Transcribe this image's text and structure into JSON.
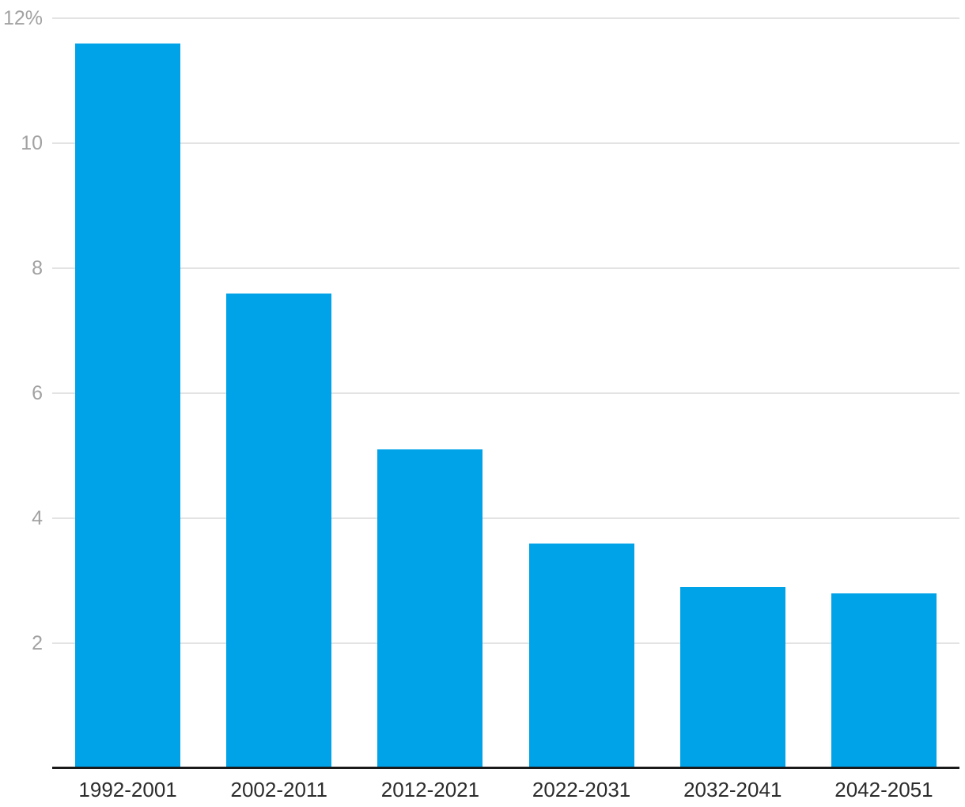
{
  "chart_data": {
    "type": "bar",
    "title": "",
    "xlabel": "",
    "ylabel": "",
    "categories": [
      "1992-2001",
      "2002-2011",
      "2012-2021",
      "2022-2031",
      "2032-2041",
      "2042-2051"
    ],
    "values": [
      11.6,
      7.6,
      5.1,
      3.6,
      2.9,
      2.8
    ],
    "ylim": [
      0,
      12
    ],
    "yticks": [
      2,
      4,
      6,
      8,
      10,
      12
    ],
    "ytick_labels": [
      "2",
      "4",
      "6",
      "8",
      "10",
      "12%"
    ],
    "grid": true,
    "legend_position": "none",
    "colors": {
      "bar": "#00a3e8",
      "grid": "#e3e3e3",
      "axis": "#1a1a1a",
      "y_tick_text": "#a2a2a2",
      "x_tick_text": "#2c2c2c",
      "background": "#ffffff"
    }
  }
}
